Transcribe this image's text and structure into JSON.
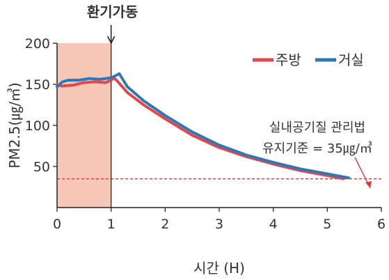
{
  "chart_data": {
    "type": "line",
    "xlabel": "시간 (H)",
    "ylabel": "PM2.5(㎍/㎥)",
    "xlim": [
      0,
      6
    ],
    "ylim": [
      0,
      200
    ],
    "xticks": [
      0,
      1,
      2,
      3,
      4,
      5,
      6
    ],
    "yticks": [
      50,
      100,
      150,
      200
    ],
    "legend_position": "top-right",
    "colors": {
      "shade": "#f6c7b6",
      "threshold": "#e0383b"
    },
    "event": {
      "x": 1,
      "label": "환기가동"
    },
    "threshold": {
      "y": 35
    },
    "annotation": {
      "line1": "실내공기질 관리법",
      "line2": "유지기준 = 35㎍/㎥"
    },
    "series": [
      {
        "name": "주방",
        "color": "#e1484a",
        "x": [
          0,
          0.1,
          0.3,
          0.5,
          0.7,
          0.9,
          1.0,
          1.05,
          1.1,
          1.3,
          1.6,
          2.0,
          2.5,
          3.0,
          3.5,
          4.0,
          4.5,
          5.0,
          5.3
        ],
        "y": [
          149,
          148,
          149,
          152,
          153,
          152,
          155,
          158,
          155,
          140,
          125,
          108,
          88,
          73,
          62,
          53,
          45,
          39,
          35
        ]
      },
      {
        "name": "거실",
        "color": "#2e78b8",
        "x": [
          0,
          0.1,
          0.2,
          0.4,
          0.6,
          0.8,
          1.0,
          1.1,
          1.15,
          1.3,
          1.6,
          2.0,
          2.5,
          3.0,
          3.5,
          4.0,
          4.5,
          5.0,
          5.4
        ],
        "y": [
          147,
          153,
          155,
          155,
          157,
          156,
          158,
          161,
          163,
          147,
          130,
          112,
          92,
          76,
          64,
          55,
          47,
          41,
          36
        ]
      }
    ]
  }
}
